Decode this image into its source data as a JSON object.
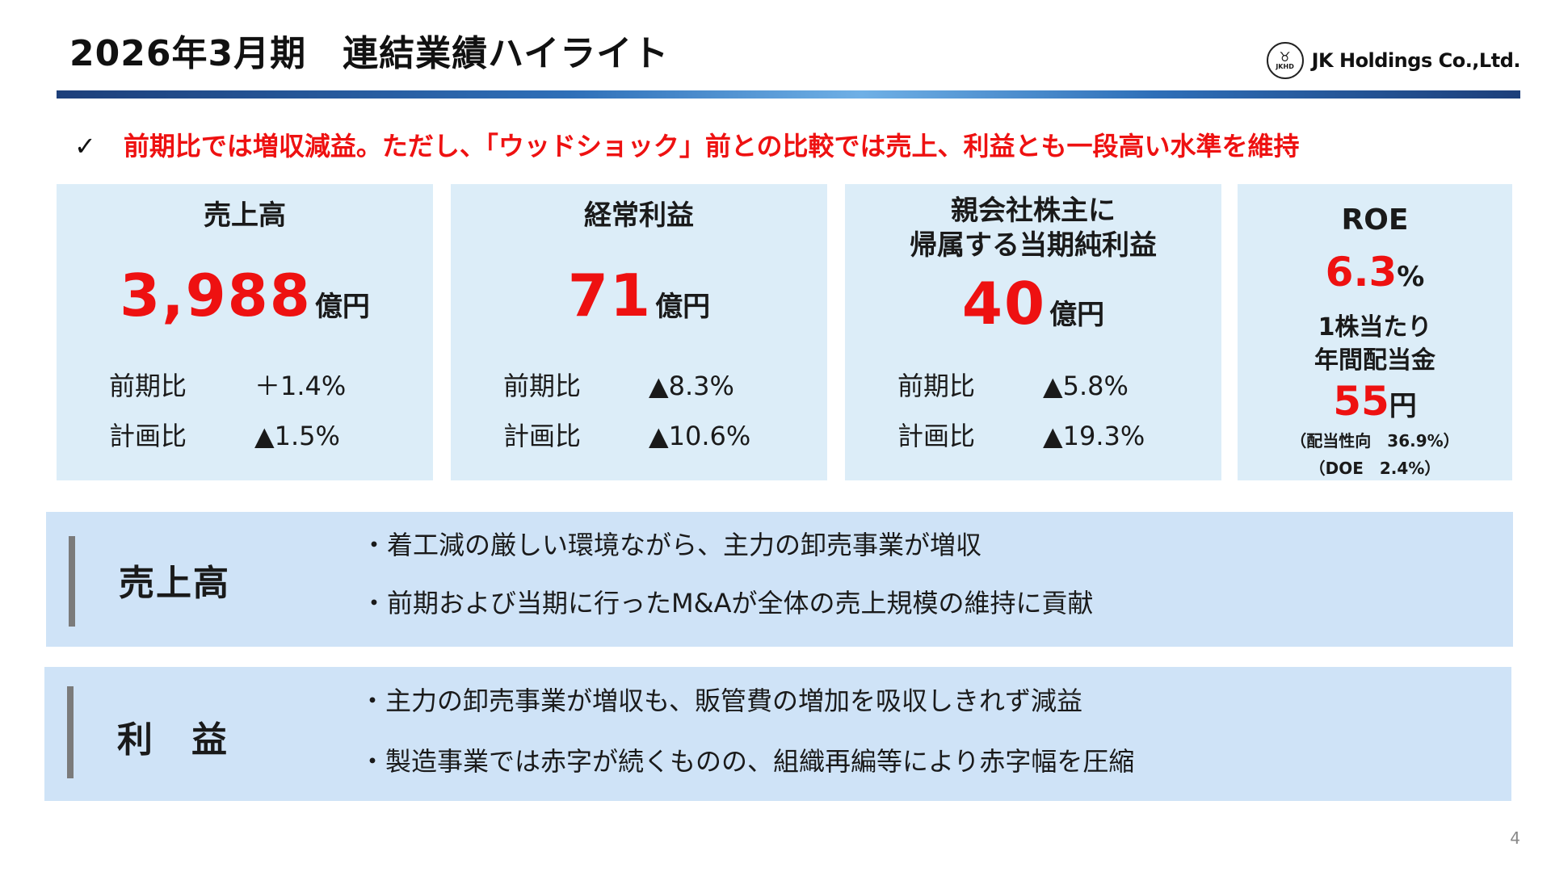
{
  "header": {
    "title": "2026年3月期　連結業績ハイライト",
    "company": "JK Holdings Co.,Ltd.",
    "logo_mark": "JKHD"
  },
  "headline": {
    "check": "✓",
    "text": "前期比では増収減益。ただし、「ウッドショック」前との比較では売上、利益とも一段高い水準を維持"
  },
  "cards": [
    {
      "title": "売上高",
      "value": "3,988",
      "unit": "億円",
      "rows": [
        {
          "label": "前期比",
          "value": "＋1.4%"
        },
        {
          "label": "計画比",
          "value": "▲1.5%"
        }
      ]
    },
    {
      "title": "経常利益",
      "value": "71",
      "unit": "億円",
      "rows": [
        {
          "label": "前期比",
          "value": "▲8.3%"
        },
        {
          "label": "計画比",
          "value": "▲10.6%"
        }
      ]
    },
    {
      "title_line1": "親会社株主に",
      "title_line2": "帰属する当期純利益",
      "value": "40",
      "unit": "億円",
      "rows": [
        {
          "label": "前期比",
          "value": "▲5.8%"
        },
        {
          "label": "計画比",
          "value": "▲19.3%"
        }
      ]
    }
  ],
  "roe_card": {
    "label": "ROE",
    "value": "6.3",
    "pct": "%",
    "div_label_line1": "1株当たり",
    "div_label_line2": "年間配当金",
    "div_value": "55",
    "div_unit": "円",
    "payout": "（配当性向　36.9%）",
    "doe": "（DOE　2.4%）"
  },
  "sections": [
    {
      "label": "売上高",
      "items": [
        "・着工減の厳しい環境ながら、主力の卸売事業が増収",
        "・前期および当期に行ったM&Aが全体の売上規模の維持に貢献"
      ]
    },
    {
      "label": "利　益",
      "items": [
        "・主力の卸売事業が増収も、販管費の増加を吸収しきれず減益",
        "・製造事業では赤字が続くものの、組織再編等により赤字幅を圧縮"
      ]
    }
  ],
  "page_number": "4"
}
